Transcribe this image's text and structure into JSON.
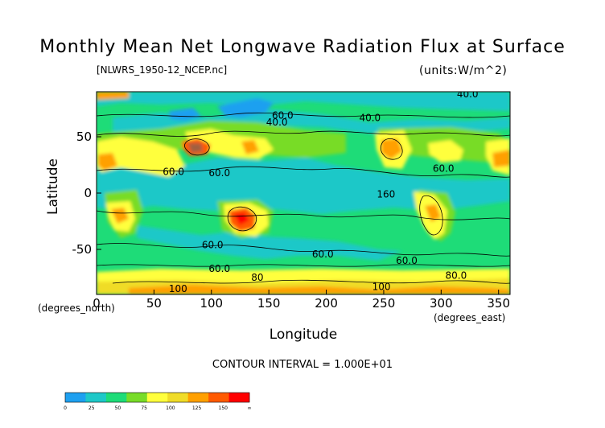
{
  "chart_data": {
    "type": "heatmap",
    "title": "Monthly Mean Net Longwave Radiation Flux at Surface",
    "subtitle": "[NLWRS_1950-12_NCEP.nc]",
    "units": "(units:W/m^2)",
    "xlabel": "Longitude",
    "ylabel": "Latitude",
    "xunit": "(degrees_east)",
    "yunit": "(degrees_north)",
    "xlim": [
      0,
      360
    ],
    "ylim": [
      -90,
      90
    ],
    "xticks": [
      "0",
      "50",
      "100",
      "150",
      "200",
      "250",
      "300",
      "350"
    ],
    "yticks": [
      "50",
      "0",
      "-50"
    ],
    "contour_interval": "CONTOUR INTERVAL = 1.000E+01",
    "contour_labels": [
      {
        "text": "40.0",
        "lon": 157,
        "lat": 60
      },
      {
        "text": "40.0",
        "lon": 238,
        "lat": 64
      },
      {
        "text": "40.0",
        "lon": 323,
        "lat": 85
      },
      {
        "text": "60.0",
        "lon": 162,
        "lat": 66
      },
      {
        "text": "60.0",
        "lon": 67,
        "lat": 16
      },
      {
        "text": "60.0",
        "lon": 107,
        "lat": 15
      },
      {
        "text": "60.0",
        "lon": 302,
        "lat": 19
      },
      {
        "text": "160",
        "lon": 252,
        "lat": -4
      },
      {
        "text": "60.0",
        "lon": 101,
        "lat": -49
      },
      {
        "text": "60.0",
        "lon": 197,
        "lat": -57
      },
      {
        "text": "60.0",
        "lon": 270,
        "lat": -63
      },
      {
        "text": "60.0",
        "lon": 107,
        "lat": -70
      },
      {
        "text": "80",
        "lon": 140,
        "lat": -78
      },
      {
        "text": "100",
        "lon": 71,
        "lat": -88
      },
      {
        "text": "100",
        "lon": 248,
        "lat": -86
      },
      {
        "text": "80.0",
        "lon": 313,
        "lat": -76
      }
    ],
    "colorbar": {
      "labels": [
        "0",
        "25",
        "50",
        "75",
        "100",
        "125",
        "150",
        "∞"
      ],
      "colors": [
        "#1ea0f0",
        "#1ec8c8",
        "#1edc78",
        "#78dc28",
        "#ffff3c",
        "#f0dc28",
        "#ffa000",
        "#ff5a00",
        "#ff0000"
      ]
    }
  }
}
